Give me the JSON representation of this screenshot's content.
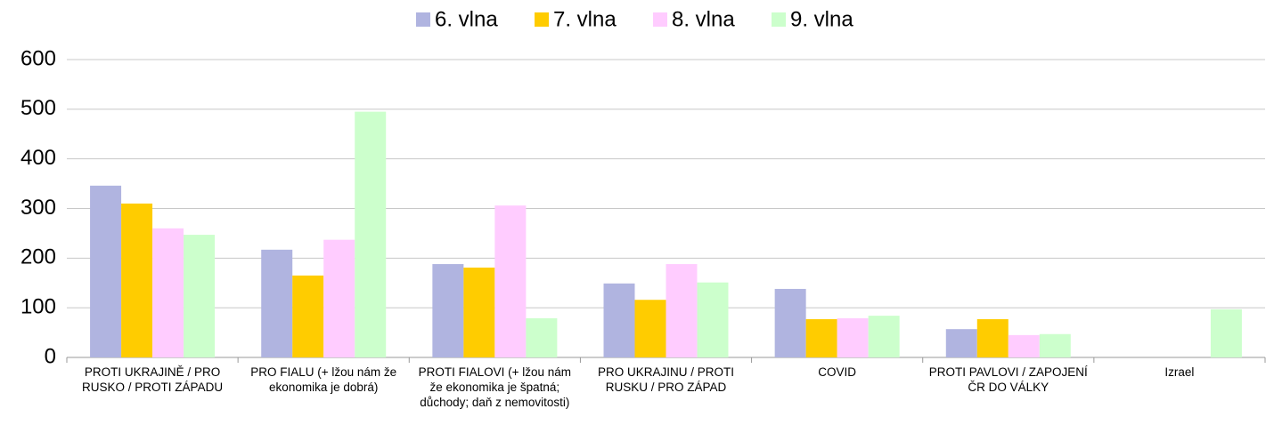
{
  "chart_data": {
    "type": "bar",
    "categories": [
      "PROTI UKRAJINĚ / PRO RUSKO / PROTI ZÁPADU",
      "PRO FIALU (+ lžou nám že ekonomika je dobrá)",
      "PROTI FIALOVI (+ lžou nám že ekonomika je špatná; důchody; daň z nemovitosti)",
      "PRO UKRAJINU / PROTI RUSKU / PRO ZÁPAD",
      "COVID",
      "PROTI PAVLOVI / ZAPOJENÍ ČR DO VÁLKY",
      "Izrael"
    ],
    "series": [
      {
        "name": "6. vlna",
        "color": "#b0b4e0",
        "values": [
          346,
          217,
          188,
          149,
          138,
          57,
          null
        ]
      },
      {
        "name": "7. vlna",
        "color": "#ffcc00",
        "values": [
          310,
          165,
          181,
          116,
          77,
          77,
          null
        ]
      },
      {
        "name": "8. vlna",
        "color": "#ffccff",
        "values": [
          260,
          237,
          306,
          188,
          79,
          45,
          null
        ]
      },
      {
        "name": "9. vlna",
        "color": "#ccffcc",
        "values": [
          247,
          495,
          79,
          151,
          84,
          47,
          97
        ]
      }
    ],
    "ylim": [
      0,
      600
    ],
    "yticks": [
      0,
      100,
      200,
      300,
      400,
      500,
      600
    ],
    "grid": true,
    "legend": "top"
  }
}
